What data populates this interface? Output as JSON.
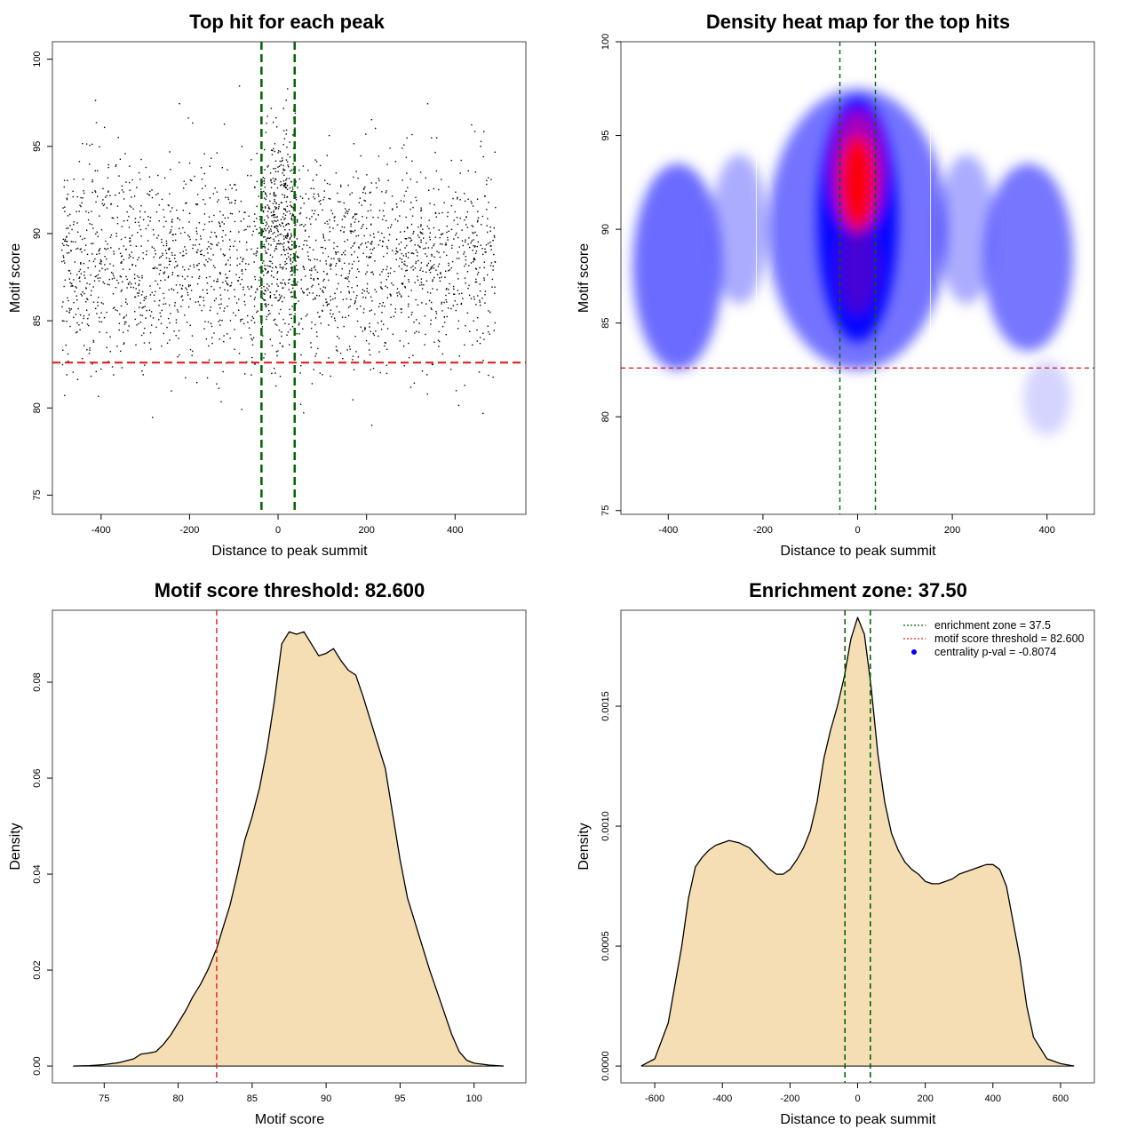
{
  "figure": {
    "panel_count": 4
  },
  "chart_data": [
    {
      "type": "scatter",
      "title": "Top hit for each peak",
      "xlabel": "Distance to peak summit",
      "ylabel": "Motif score",
      "xlim": [
        -510,
        560
      ],
      "ylim": [
        73.9,
        101
      ],
      "xticks": [
        -400,
        -200,
        0,
        200,
        400
      ],
      "yticks": [
        75,
        80,
        85,
        90,
        95,
        100
      ],
      "vlines": [
        -37.5,
        37.5
      ],
      "hline": 82.6,
      "point_color": "#000000",
      "vline_color": "#006400",
      "hline_color": "#e02020",
      "point_cloud": {
        "n_points": 2600,
        "x_range": [
          -490,
          490
        ],
        "y_mean": 88.3,
        "y_sd": 3.6,
        "central_half_width": 40,
        "central_y_mean": 91.0
      }
    },
    {
      "type": "heatmap",
      "title": "Density heat map for the top hits",
      "xlabel": "Distance to peak summit",
      "ylabel": "Motif score",
      "xlim": [
        -500,
        500
      ],
      "ylim": [
        74.8,
        100
      ],
      "xticks": [
        -400,
        -200,
        0,
        200,
        400
      ],
      "yticks": [
        75,
        80,
        85,
        90,
        95,
        100
      ],
      "vlines": [
        -37.5,
        37.5
      ],
      "hline": 82.6,
      "colormap": [
        "#ffffff",
        "#0000ff",
        "#ff0000"
      ],
      "density_centers": [
        {
          "x": 0,
          "y": 92.5,
          "weight": 1.0
        },
        {
          "x": 0,
          "y": 88.0,
          "weight": 0.7
        },
        {
          "x": -400,
          "y": 87.5,
          "weight": 0.55
        },
        {
          "x": 380,
          "y": 88.5,
          "weight": 0.5
        }
      ]
    },
    {
      "type": "area",
      "title": "Motif score threshold: 82.600",
      "xlabel": "Motif score",
      "ylabel": "Density",
      "xlim": [
        71.5,
        103.5
      ],
      "ylim": [
        -0.0035,
        0.095
      ],
      "xticks": [
        75,
        80,
        85,
        90,
        95,
        100
      ],
      "yticks": [
        0.0,
        0.02,
        0.04,
        0.06,
        0.08
      ],
      "ytick_labels": [
        "0.00",
        "0.02",
        "0.04",
        "0.06",
        "0.08"
      ],
      "vline": 82.6,
      "fill_color": "#f5deb3",
      "x": [
        72.9,
        74.0,
        75.0,
        76.0,
        77.0,
        77.5,
        78.0,
        78.5,
        79.0,
        79.5,
        80.0,
        80.5,
        81.0,
        81.5,
        82.0,
        82.6,
        83.0,
        83.5,
        84.0,
        84.5,
        85.0,
        85.5,
        86.0,
        86.5,
        87.0,
        87.5,
        88.0,
        88.5,
        89.0,
        89.5,
        90.0,
        90.5,
        91.0,
        91.5,
        92.0,
        92.5,
        93.0,
        93.5,
        94.0,
        94.5,
        95.0,
        95.5,
        96.0,
        96.5,
        97.0,
        97.5,
        98.0,
        98.5,
        99.0,
        99.5,
        100.0,
        101.0,
        102.0
      ],
      "y": [
        0.0,
        0.0001,
        0.0003,
        0.0007,
        0.0015,
        0.0025,
        0.0027,
        0.003,
        0.0045,
        0.0065,
        0.009,
        0.0115,
        0.0145,
        0.017,
        0.02,
        0.0245,
        0.0285,
        0.0335,
        0.04,
        0.047,
        0.052,
        0.058,
        0.066,
        0.076,
        0.088,
        0.0905,
        0.09,
        0.0905,
        0.088,
        0.0855,
        0.086,
        0.087,
        0.0845,
        0.0825,
        0.0815,
        0.077,
        0.072,
        0.067,
        0.062,
        0.0525,
        0.043,
        0.035,
        0.03,
        0.025,
        0.02,
        0.0155,
        0.011,
        0.0065,
        0.003,
        0.0012,
        0.0006,
        0.0002,
        0.0
      ]
    },
    {
      "type": "area",
      "title": "Enrichment zone: 37.50",
      "xlabel": "Distance to peak summit",
      "ylabel": "Density",
      "xlim": [
        -700,
        700
      ],
      "ylim": [
        -7e-05,
        0.0019
      ],
      "xticks": [
        -600,
        -400,
        -200,
        0,
        200,
        400,
        600
      ],
      "yticks": [
        0.0,
        0.0005,
        0.001,
        0.0015
      ],
      "ytick_labels": [
        "0.0000",
        "0.0005",
        "0.0010",
        "0.0015"
      ],
      "vlines": [
        -37.5,
        37.5
      ],
      "fill_color": "#f5deb3",
      "legend": [
        {
          "label": "enrichment zone = 37.5",
          "style": "dotted",
          "color": "#006400"
        },
        {
          "label": "motif score threshold = 82.600",
          "style": "dotted",
          "color": "#e02020"
        },
        {
          "label": "centrality p-val = -0.8074",
          "style": "point",
          "color": "#0000ff"
        }
      ],
      "legend_position": "top-right",
      "x": [
        -640,
        -600,
        -560,
        -520,
        -500,
        -480,
        -460,
        -440,
        -420,
        -400,
        -380,
        -350,
        -320,
        -300,
        -280,
        -260,
        -240,
        -220,
        -200,
        -180,
        -160,
        -140,
        -120,
        -100,
        -80,
        -60,
        -40,
        -20,
        0,
        20,
        40,
        60,
        80,
        100,
        120,
        140,
        160,
        180,
        200,
        220,
        240,
        260,
        280,
        300,
        320,
        340,
        360,
        380,
        400,
        420,
        440,
        460,
        480,
        500,
        520,
        560,
        600,
        640
      ],
      "y": [
        0.0,
        3e-05,
        0.00018,
        0.0005,
        0.0007,
        0.00083,
        0.00087,
        0.0009,
        0.00092,
        0.00093,
        0.00094,
        0.00093,
        0.00091,
        0.00088,
        0.00085,
        0.00082,
        0.0008,
        0.0008,
        0.00082,
        0.00086,
        0.00091,
        0.00098,
        0.0011,
        0.00128,
        0.0014,
        0.0015,
        0.00162,
        0.00178,
        0.00187,
        0.0018,
        0.00158,
        0.0013,
        0.0011,
        0.00097,
        0.0009,
        0.00085,
        0.00082,
        0.0008,
        0.00077,
        0.00076,
        0.00076,
        0.00077,
        0.00078,
        0.0008,
        0.00081,
        0.00082,
        0.00083,
        0.00084,
        0.00084,
        0.00082,
        0.00075,
        0.0006,
        0.00045,
        0.00025,
        0.00012,
        3e-05,
        1e-05,
        0.0
      ]
    }
  ]
}
